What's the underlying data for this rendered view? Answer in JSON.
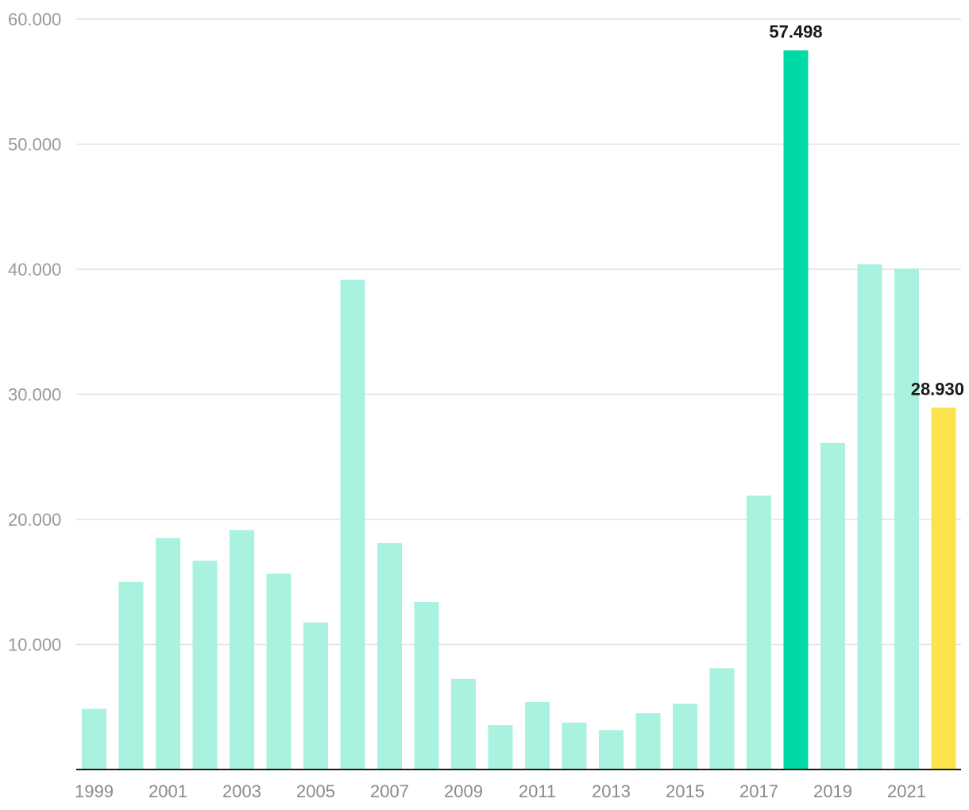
{
  "chart_data": {
    "type": "bar",
    "categories": [
      "1999",
      "2000",
      "2001",
      "2002",
      "2003",
      "2004",
      "2005",
      "2006",
      "2007",
      "2008",
      "2009",
      "2010",
      "2011",
      "2012",
      "2013",
      "2014",
      "2015",
      "2016",
      "2017",
      "2018",
      "2019",
      "2020",
      "2021",
      "2022"
    ],
    "values": [
      4850,
      15000,
      18500,
      16700,
      19150,
      15650,
      11750,
      39150,
      18100,
      13400,
      7250,
      3550,
      5400,
      3750,
      3150,
      4500,
      5250,
      8100,
      21900,
      57498,
      26100,
      40400,
      40050,
      28930
    ],
    "ylim": [
      0,
      60000
    ],
    "yticks": [
      {
        "value": 10000,
        "label": "10.000"
      },
      {
        "value": 20000,
        "label": "20.000"
      },
      {
        "value": 30000,
        "label": "30.000"
      },
      {
        "value": 40000,
        "label": "40.000"
      },
      {
        "value": 50000,
        "label": "50.000"
      },
      {
        "value": 60000,
        "label": "60.000"
      }
    ],
    "xtick_labels": [
      "1999",
      "2001",
      "2003",
      "2005",
      "2007",
      "2009",
      "2011",
      "2013",
      "2015",
      "2017",
      "2019",
      "2021"
    ],
    "data_labels": [
      {
        "category": "2018",
        "text": "57.498"
      },
      {
        "category": "2022",
        "text": "28.930"
      }
    ],
    "colors": {
      "default": "#a8f2df",
      "2018": "#00d9a4",
      "2022": "#fde34b"
    },
    "grid": true,
    "title": "",
    "xlabel": "",
    "ylabel": ""
  }
}
